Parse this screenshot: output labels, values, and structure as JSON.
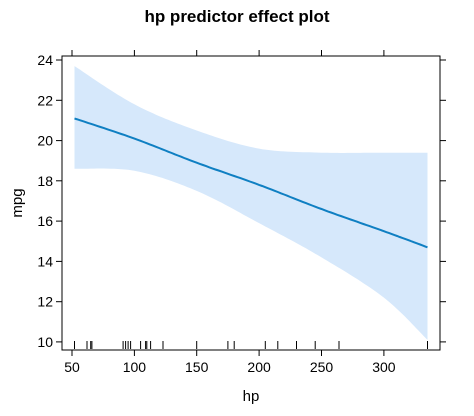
{
  "chart_data": {
    "type": "line",
    "title": "hp predictor effect plot",
    "xlabel": "hp",
    "ylabel": "mpg",
    "xlim": [
      42,
      345
    ],
    "ylim": [
      9.6,
      24.2
    ],
    "x_ticks": [
      50,
      100,
      150,
      200,
      250,
      300
    ],
    "x_tick_labels": [
      "50",
      "100",
      "150",
      "200",
      "250",
      "300"
    ],
    "y_ticks": [
      10,
      12,
      14,
      16,
      18,
      20,
      22,
      24
    ],
    "y_tick_labels": [
      "10",
      "12",
      "14",
      "16",
      "18",
      "20",
      "22",
      "24"
    ],
    "grid": false,
    "legend": "none",
    "colors": {
      "fit": "#0f7fc2",
      "band": "#d6e8fb",
      "frame": "#000000"
    },
    "series": [
      {
        "x": [
          52,
          100,
          150,
          200,
          250,
          300,
          335
        ],
        "fit": [
          21.1,
          20.1,
          18.9,
          17.8,
          16.6,
          15.5,
          14.7
        ],
        "lower": [
          18.6,
          18.5,
          17.5,
          15.9,
          14.2,
          12.2,
          10.1
        ],
        "upper": [
          23.7,
          21.8,
          20.5,
          19.6,
          19.4,
          19.4,
          19.4
        ]
      }
    ],
    "rug_x": [
      52,
      62,
      65,
      66,
      91,
      93,
      95,
      97,
      105,
      109,
      110,
      113,
      123,
      150,
      175,
      180,
      205,
      215,
      230,
      245,
      264,
      335
    ]
  }
}
